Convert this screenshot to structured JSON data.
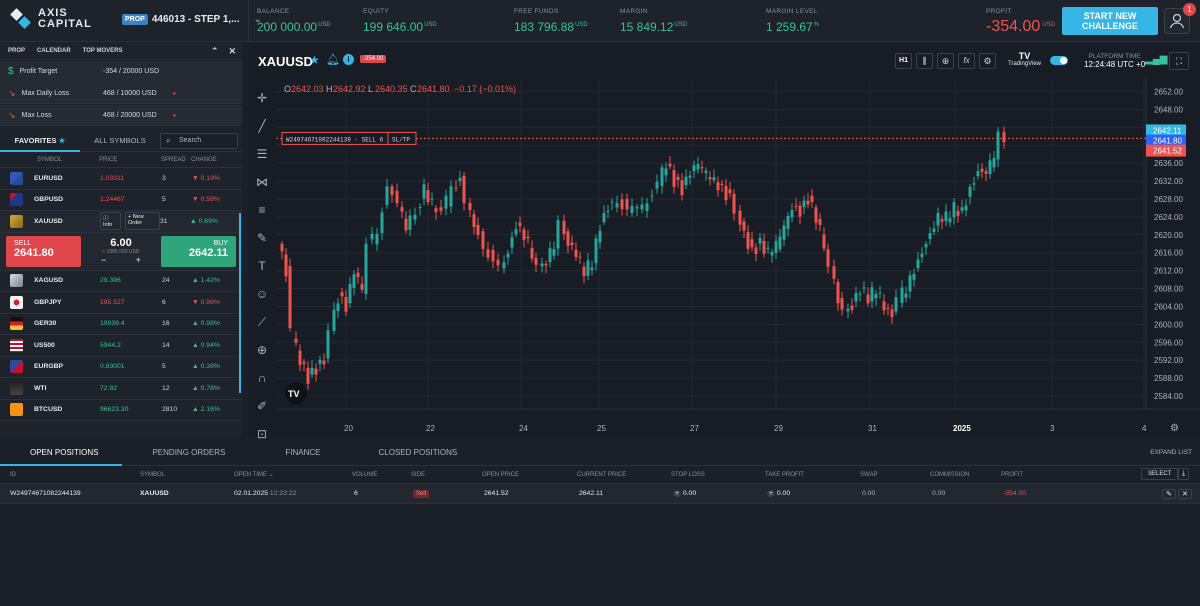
{
  "header": {
    "logo_line1": "AXIS",
    "logo_line2": "CAPITAL",
    "prop_badge": "PROP",
    "account": "446013 - STEP 1,...",
    "stats": [
      {
        "label": "BALANCE",
        "value": "200 000.00",
        "unit": "USD"
      },
      {
        "label": "EQUITY",
        "value": "199 646.00",
        "unit": "USD"
      },
      {
        "label": "FREE FUNDS",
        "value": "183 796.88",
        "unit": "USD"
      },
      {
        "label": "MARGIN",
        "value": "15 849.12",
        "unit": "USD"
      },
      {
        "label": "MARGIN LEVEL",
        "value": "1 259.67",
        "unit": "%"
      }
    ],
    "profit_label": "PROFIT",
    "profit_value": "-354.00",
    "profit_unit": "USD",
    "challenge_button": "START NEW CHALLENGE",
    "notification_count": "1"
  },
  "left": {
    "tabs": [
      "PROP",
      "CALENDAR",
      "TOP MOVERS"
    ],
    "prop_rows": [
      {
        "label": "Profit Target",
        "value": "-354 / 20000 USD"
      },
      {
        "label": "Max Daily Loss",
        "value": "468 / 10000 USD"
      },
      {
        "label": "Max Loss",
        "value": "468 / 20000 USD"
      }
    ],
    "favorites_tab": "FAVORITES",
    "all_symbols_tab": "ALL SYMBOLS",
    "search_placeholder": "Search",
    "columns": [
      "SYMBOL",
      "PRICE",
      "SPREAD",
      "CHANGE"
    ],
    "symbols_top": [
      {
        "name": "EURUSD",
        "price": "1.03311",
        "spread": "3",
        "change": "0.19%",
        "dir": "down"
      },
      {
        "name": "GBPUSD",
        "price": "1.24467",
        "spread": "5",
        "change": "0.58%",
        "dir": "down"
      }
    ],
    "selected": {
      "name": "XAUUSD",
      "info": "Info",
      "new_order": "New Order",
      "spread": "31",
      "change": "0.69%",
      "dir": "up"
    },
    "trade": {
      "sell_label": "SELL",
      "sell_price": "2641.80",
      "buy_label": "BUY",
      "buy_price": "2642.11",
      "volume": "6.00",
      "volume_sub": "≈ 1585 000 USD",
      "minus": "−",
      "plus": "+"
    },
    "symbols_bottom": [
      {
        "name": "XAGUSD",
        "price": "29.396",
        "spread": "24",
        "change": "1.42%",
        "dir": "up"
      },
      {
        "name": "GBPJPY",
        "price": "195.527",
        "spread": "6",
        "change": "0.96%",
        "dir": "down"
      },
      {
        "name": "GER30",
        "price": "19939.4",
        "spread": "16",
        "change": "0.98%",
        "dir": "up"
      },
      {
        "name": "US500",
        "price": "5944.2",
        "spread": "14",
        "change": "0.94%",
        "dir": "up"
      },
      {
        "name": "EURGBP",
        "price": "0.83001",
        "spread": "5",
        "change": "0.39%",
        "dir": "up"
      },
      {
        "name": "WTI",
        "price": "72.82",
        "spread": "12",
        "change": "0.78%",
        "dir": "up"
      },
      {
        "name": "BTCUSD",
        "price": "96623.30",
        "spread": "2810",
        "change": "2.16%",
        "dir": "up"
      }
    ]
  },
  "chart": {
    "symbol": "XAUUSD",
    "pl_badge": "-354.00",
    "timeframe": "H1",
    "tradingview": "TradingView",
    "platform_time_label": "PLATFORM TIME",
    "platform_time": "12:24:48 UTC +0",
    "ohlc": {
      "o": "2642.03",
      "h": "2642.92",
      "l": "2640.35",
      "c": "2641.80",
      "chg": "−0.17 (−0.01%)"
    },
    "position_line": "W24974671082244139 - SELL 6",
    "sltp": "SL/TP",
    "price_ticks": [
      "2652.00",
      "2648.00",
      "2644.00",
      "2640.00",
      "2636.00",
      "2632.00",
      "2628.00",
      "2624.00",
      "2620.00",
      "2616.00",
      "2612.00",
      "2608.00",
      "2604.00",
      "2600.00",
      "2596.00",
      "2592.00",
      "2588.00",
      "2584.00"
    ],
    "date_ticks": [
      "20",
      "22",
      "24",
      "25",
      "27",
      "29",
      "31",
      "2025",
      "3",
      "4"
    ],
    "price_tags": {
      "ask": "2642.11",
      "bid": "2641.80",
      "open": "2641.52"
    }
  },
  "bottom": {
    "tabs": [
      "OPEN POSITIONS",
      "PENDING ORDERS",
      "FINANCE",
      "CLOSED POSITIONS"
    ],
    "expand": "EXPAND LIST",
    "columns": [
      "ID",
      "SYMBOL",
      "OPEN TIME",
      "VOLUME",
      "SIDE",
      "OPEN PRICE",
      "CURRENT PRICE",
      "STOP LOSS",
      "TAKE PROFIT",
      "SWAP",
      "COMMISSION",
      "PROFIT"
    ],
    "select_button": "SELECT",
    "row": {
      "id": "W24974671082244139",
      "symbol": "XAUUSD",
      "date": "02.01.2025",
      "time": "12:23:22",
      "volume": "6",
      "side": "Sell",
      "open_price": "2641.52",
      "current_price": "2642.11",
      "stop_loss": "0.00",
      "take_profit": "0.00",
      "swap": "0.00",
      "commission": "0.00",
      "profit": "-354.00"
    }
  },
  "colors": {
    "up": "#35c29b",
    "down": "#ef5350",
    "accent": "#35b6e5"
  }
}
